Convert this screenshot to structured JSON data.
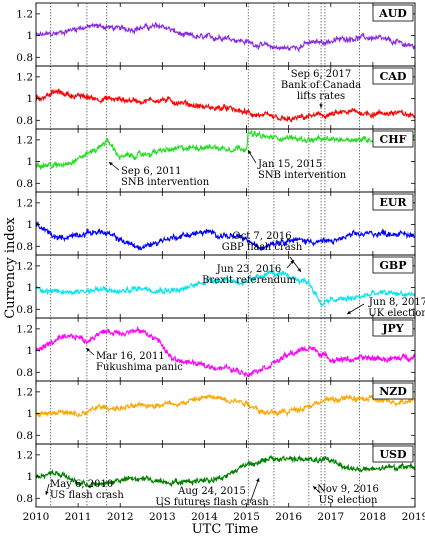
{
  "chart_data": {
    "type": "line",
    "xlabel": "UTC Time",
    "ylabel": "Currency index",
    "xlim": [
      2010,
      2019
    ],
    "x_ticks": [
      "2010",
      "2011",
      "2012",
      "2013",
      "2014",
      "2015",
      "2016",
      "2017",
      "2018",
      "2019"
    ],
    "ylim": [
      0.72,
      1.3
    ],
    "y_ticks": [
      "0.8",
      "1",
      "1.2"
    ],
    "series": [
      {
        "name": "AUD",
        "color": "#8a2be2",
        "x": [
          2010,
          2010.5,
          2011,
          2011.5,
          2012,
          2012.5,
          2013,
          2013.5,
          2014,
          2014.5,
          2015,
          2015.5,
          2016,
          2016.5,
          2017,
          2017.5,
          2018,
          2018.5,
          2019
        ],
        "y": [
          1.0,
          1.02,
          1.07,
          1.09,
          1.06,
          1.07,
          1.09,
          1.0,
          0.98,
          0.99,
          0.94,
          0.9,
          0.88,
          0.93,
          0.95,
          0.98,
          0.98,
          0.94,
          0.9
        ]
      },
      {
        "name": "CAD",
        "color": "#ff0000",
        "x": [
          2010,
          2010.5,
          2011,
          2011.5,
          2012,
          2012.5,
          2013,
          2013.5,
          2014,
          2014.5,
          2015,
          2015.5,
          2016,
          2016.5,
          2017,
          2017.5,
          2018,
          2018.5,
          2019
        ],
        "y": [
          1.0,
          1.06,
          1.02,
          1.0,
          0.99,
          0.98,
          0.99,
          0.96,
          0.92,
          0.91,
          0.87,
          0.83,
          0.8,
          0.84,
          0.85,
          0.88,
          0.86,
          0.87,
          0.84
        ]
      },
      {
        "name": "CHF",
        "color": "#22dd22",
        "x": [
          2010,
          2010.5,
          2011,
          2011.5,
          2011.68,
          2012,
          2012.5,
          2013,
          2013.5,
          2014,
          2014.5,
          2015,
          2015.04,
          2015.5,
          2016,
          2016.5,
          2017,
          2017.5,
          2018,
          2018.5,
          2019
        ],
        "y": [
          0.98,
          0.96,
          1.03,
          1.13,
          1.2,
          1.04,
          1.06,
          1.1,
          1.12,
          1.14,
          1.12,
          1.13,
          1.26,
          1.22,
          1.22,
          1.2,
          1.2,
          1.21,
          1.2,
          1.21,
          1.22
        ]
      },
      {
        "name": "EUR",
        "color": "#0000ff",
        "x": [
          2010,
          2010.5,
          2011,
          2011.5,
          2012,
          2012.5,
          2013,
          2013.5,
          2014,
          2014.5,
          2015,
          2015.3,
          2015.6,
          2016,
          2016.5,
          2017,
          2017.5,
          2018,
          2018.5,
          2019
        ],
        "y": [
          1.0,
          0.87,
          0.91,
          0.94,
          0.86,
          0.78,
          0.86,
          0.9,
          0.93,
          0.9,
          0.86,
          0.78,
          0.84,
          0.86,
          0.85,
          0.84,
          0.9,
          0.92,
          0.92,
          0.9
        ]
      },
      {
        "name": "GBP",
        "color": "#00e5ee",
        "x": [
          2010,
          2010.5,
          2011,
          2011.5,
          2012,
          2012.5,
          2013,
          2013.5,
          2014,
          2014.5,
          2015,
          2015.5,
          2016,
          2016.48,
          2016.77,
          2017,
          2017.5,
          2018,
          2018.5,
          2019
        ],
        "y": [
          1.0,
          0.95,
          0.97,
          0.98,
          0.96,
          1.0,
          0.98,
          0.98,
          1.06,
          1.08,
          1.04,
          1.14,
          1.1,
          1.05,
          0.85,
          0.88,
          0.9,
          0.94,
          0.95,
          0.93
        ]
      },
      {
        "name": "JPY",
        "color": "#ff00ff",
        "x": [
          2010,
          2010.5,
          2011,
          2011.2,
          2011.5,
          2012,
          2012.5,
          2012.9,
          2013.2,
          2013.5,
          2014,
          2014.5,
          2015,
          2015.5,
          2016,
          2016.5,
          2017,
          2017.5,
          2018,
          2018.5,
          2019
        ],
        "y": [
          1.0,
          1.1,
          1.13,
          1.08,
          1.17,
          1.17,
          1.18,
          1.1,
          0.93,
          0.9,
          0.86,
          0.84,
          0.79,
          0.86,
          0.96,
          1.03,
          0.92,
          0.92,
          0.93,
          0.92,
          0.95
        ]
      },
      {
        "name": "NZD",
        "color": "#ffa500",
        "x": [
          2010,
          2010.5,
          2011,
          2011.5,
          2012,
          2012.5,
          2013,
          2013.5,
          2014,
          2014.5,
          2015,
          2015.5,
          2016,
          2016.5,
          2017,
          2017.5,
          2018,
          2018.5,
          2019
        ],
        "y": [
          1.0,
          1.02,
          0.98,
          1.06,
          1.05,
          1.07,
          1.09,
          1.1,
          1.15,
          1.14,
          1.1,
          1.0,
          1.02,
          1.08,
          1.13,
          1.14,
          1.13,
          1.1,
          1.14
        ]
      },
      {
        "name": "USD",
        "color": "#008000",
        "x": [
          2010,
          2010.5,
          2011,
          2011.5,
          2012,
          2012.5,
          2013,
          2013.5,
          2014,
          2014.5,
          2015,
          2015.5,
          2016,
          2016.5,
          2017,
          2017.5,
          2018,
          2018.5,
          2019
        ],
        "y": [
          1.0,
          1.04,
          0.94,
          0.92,
          0.97,
          0.98,
          0.96,
          0.95,
          0.97,
          1.0,
          1.12,
          1.15,
          1.17,
          1.15,
          1.15,
          1.07,
          1.06,
          1.09,
          1.1
        ]
      }
    ],
    "events": [
      2010.35,
      2011.21,
      2011.68,
      2015.04,
      2015.65,
      2016.48,
      2016.77,
      2016.86,
      2017.68
    ],
    "annotations": [
      {
        "panel": "CAD",
        "lines": [
          "Sep 6, 2017",
          "Bank of Canada",
          "lifts rates"
        ]
      },
      {
        "panel": "CHF",
        "lines": [
          "Sep 6, 2011",
          "SNB intervention"
        ]
      },
      {
        "panel": "CHF",
        "lines": [
          "Jan 15, 2015",
          "SNB intervention"
        ]
      },
      {
        "panel": "GBP",
        "lines": [
          "Oct 7, 2016",
          "GBP flash crash"
        ]
      },
      {
        "panel": "GBP",
        "lines": [
          "Jun 23, 2016",
          "Brexit referendum"
        ]
      },
      {
        "panel": "GBP",
        "lines": [
          "Jun 8, 2017",
          "UK election"
        ]
      },
      {
        "panel": "JPY",
        "lines": [
          "Mar 16, 2011",
          "Fukushima panic"
        ]
      },
      {
        "panel": "USD",
        "lines": [
          "May 6, 2010",
          "US flash crash"
        ]
      },
      {
        "panel": "USD",
        "lines": [
          "Aug 24, 2015",
          "US futures flash crash"
        ]
      },
      {
        "panel": "USD",
        "lines": [
          "Nov 9, 2016",
          "US election"
        ]
      }
    ]
  }
}
